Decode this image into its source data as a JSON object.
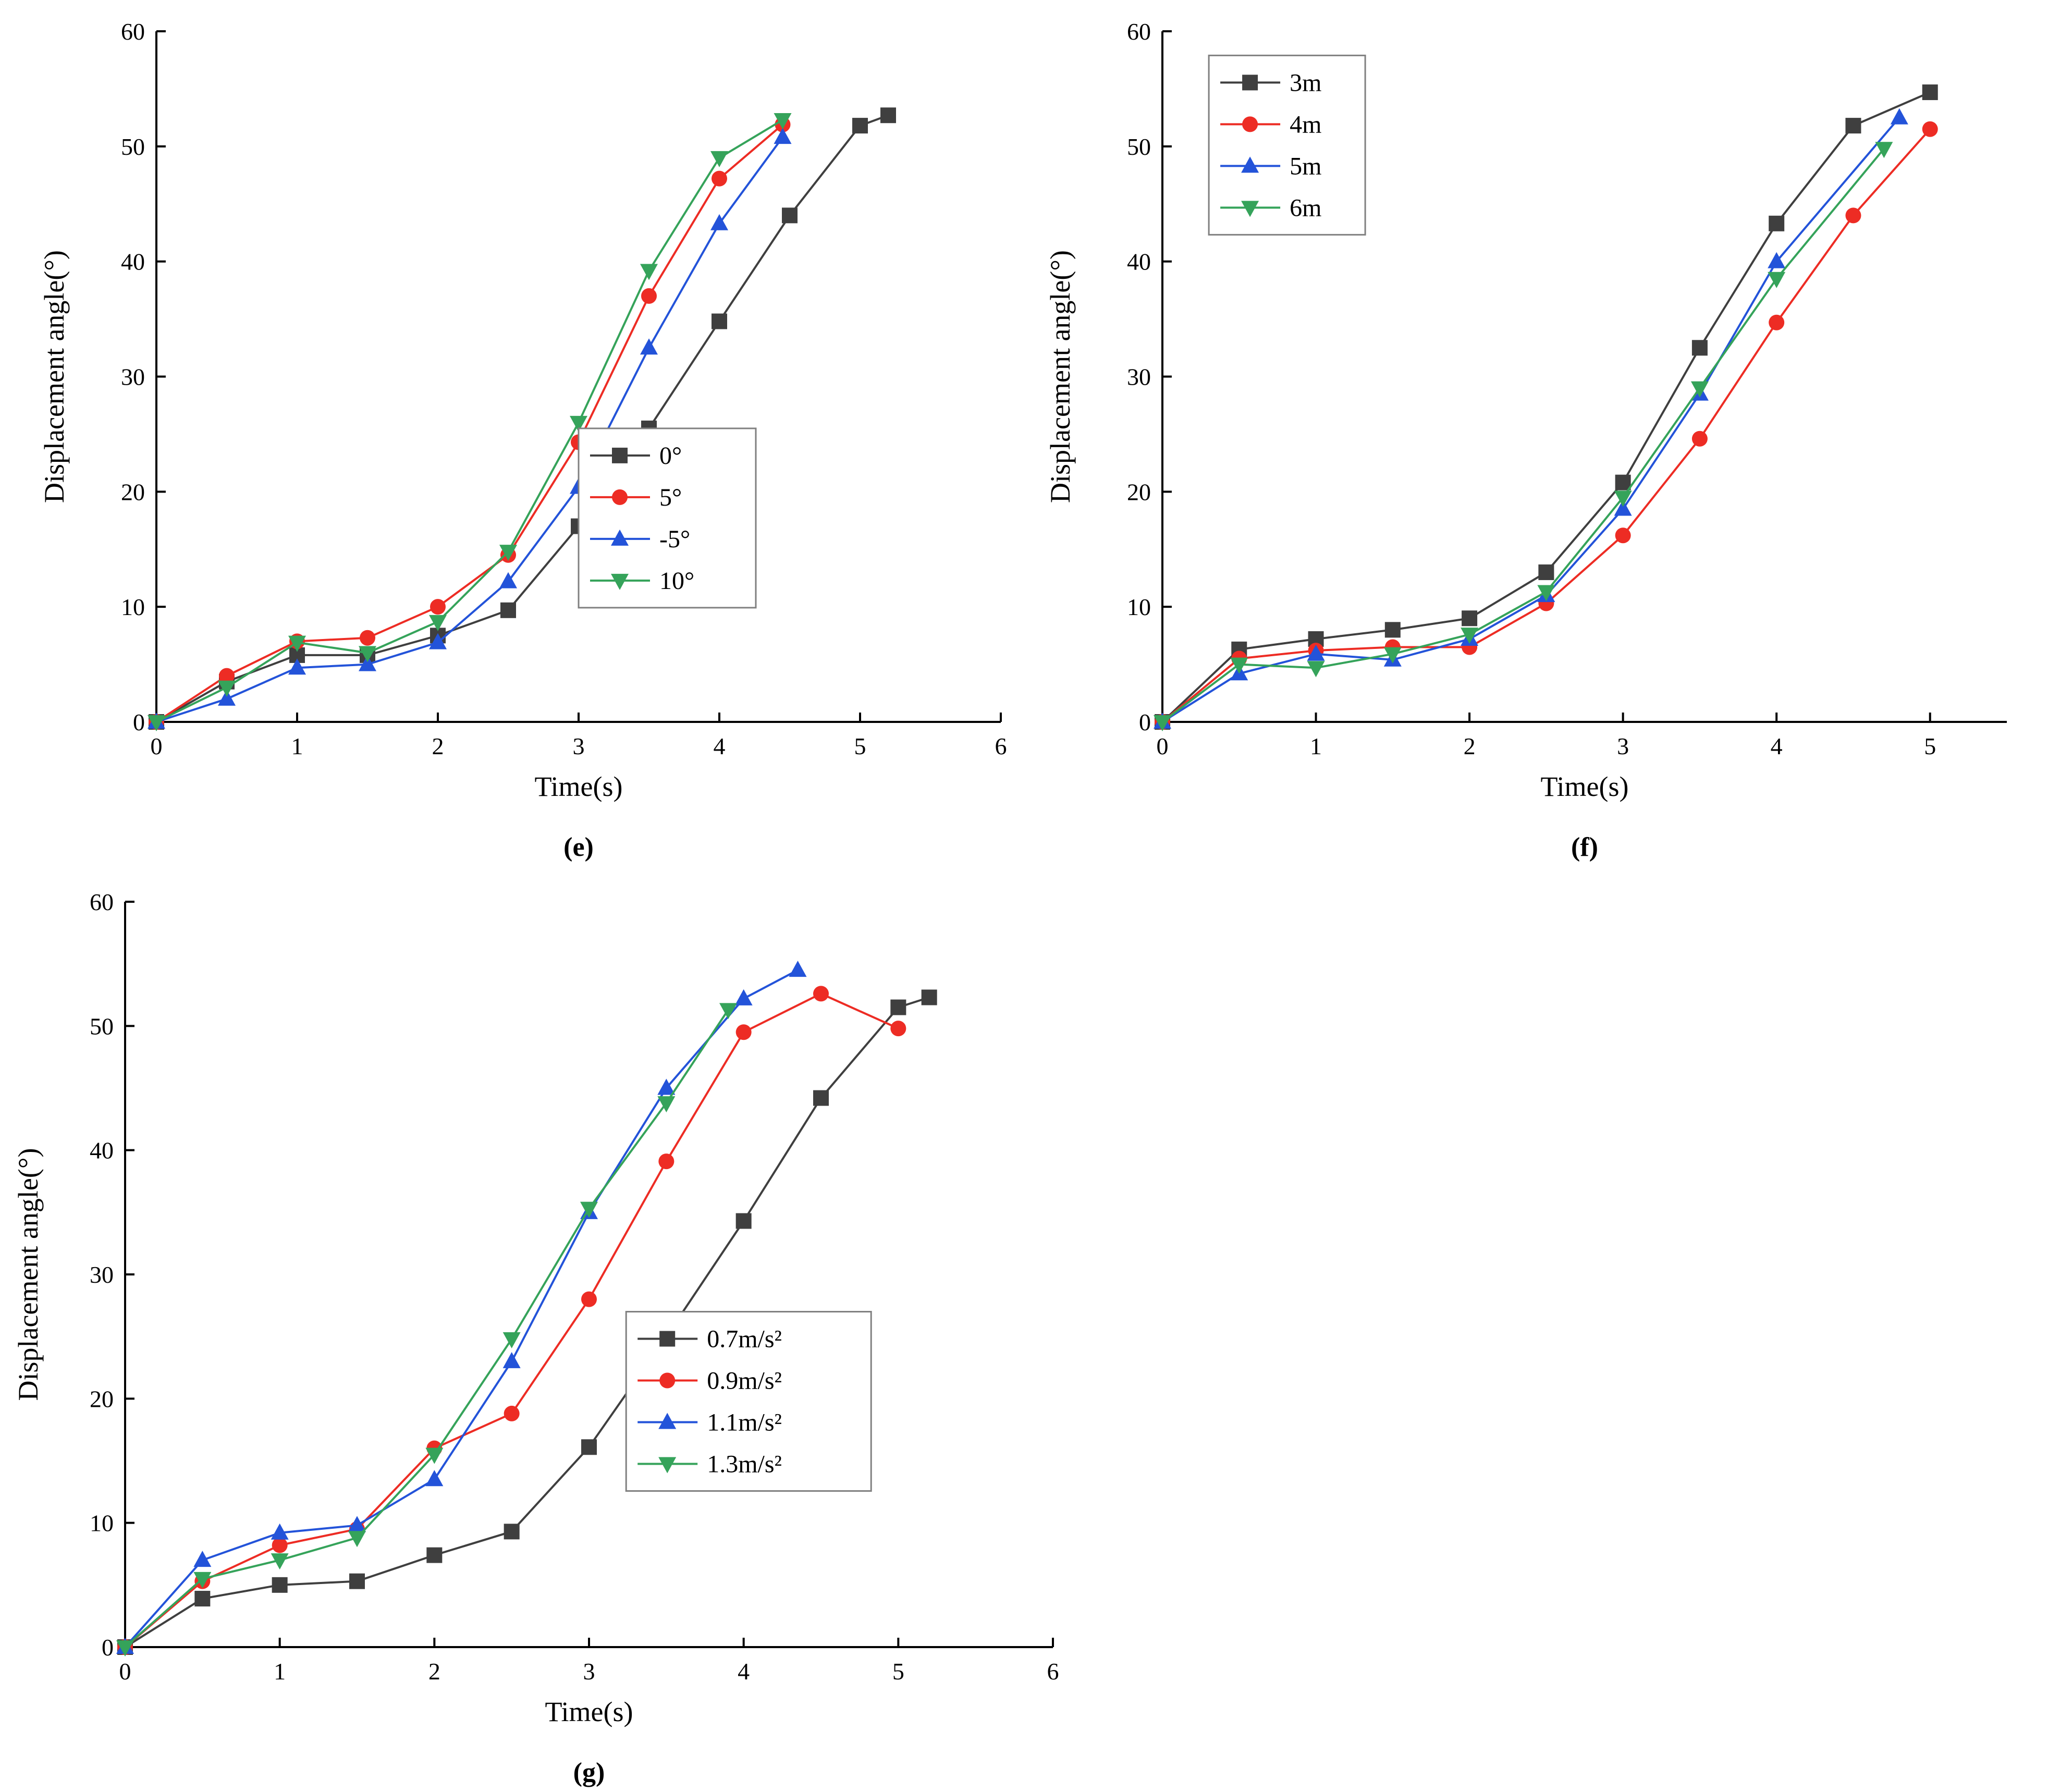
{
  "page": {
    "background": "#ffffff"
  },
  "chart_data": [
    {
      "type": "line",
      "caption": "(e)",
      "title": "",
      "xlabel": "Time(s)",
      "ylabel": "Displacement angle(°)",
      "xlim": [
        0,
        6
      ],
      "ylim": [
        0,
        60
      ],
      "xticks": [
        0,
        1,
        2,
        3,
        4,
        5,
        6
      ],
      "yticks": [
        0,
        10,
        20,
        30,
        40,
        50,
        60
      ],
      "grid": false,
      "legend_position": "inside-center-right",
      "series": [
        {
          "name": "0°",
          "color": "#3f3f3f",
          "marker": "square",
          "x": [
            0,
            0.5,
            1,
            1.5,
            2,
            2.5,
            3,
            3.5,
            4,
            4.5,
            5,
            5.2
          ],
          "y": [
            0,
            3.5,
            5.8,
            5.8,
            7.5,
            9.7,
            17,
            25.5,
            34.8,
            44,
            51.8,
            52.7
          ]
        },
        {
          "name": "5°",
          "color": "#ed2c24",
          "marker": "circle",
          "x": [
            0,
            0.5,
            1,
            1.5,
            2,
            2.5,
            3,
            3.5,
            4,
            4.45
          ],
          "y": [
            0,
            4,
            7,
            7.3,
            10,
            14.5,
            24.3,
            37,
            47.2,
            51.9
          ]
        },
        {
          "name": "-5°",
          "color": "#2353d9",
          "marker": "triangle-up",
          "x": [
            0,
            0.5,
            1,
            1.5,
            2,
            2.5,
            3,
            3.5,
            4,
            4.45
          ],
          "y": [
            0,
            2,
            4.7,
            5,
            6.9,
            12.2,
            20.4,
            32.5,
            43.3,
            50.8
          ]
        },
        {
          "name": "10°",
          "color": "#35a35a",
          "marker": "triangle-down",
          "x": [
            0,
            0.5,
            1,
            1.5,
            2,
            2.5,
            3,
            3.5,
            4,
            4.45
          ],
          "y": [
            0,
            3,
            6.9,
            6,
            8.7,
            14.8,
            26,
            39.2,
            49,
            52.3
          ]
        }
      ]
    },
    {
      "type": "line",
      "caption": "(f)",
      "title": "",
      "xlabel": "Time(s)",
      "ylabel": "Displacement angle(°)",
      "xlim": [
        0,
        5.5
      ],
      "ylim": [
        0,
        60
      ],
      "xticks": [
        0,
        1,
        2,
        3,
        4,
        5
      ],
      "yticks": [
        0,
        10,
        20,
        30,
        40,
        50,
        60
      ],
      "grid": false,
      "legend_position": "inside-top-left",
      "series": [
        {
          "name": "3m",
          "color": "#3f3f3f",
          "marker": "square",
          "x": [
            0,
            0.5,
            1,
            1.5,
            2,
            2.5,
            3,
            3.5,
            4,
            4.5,
            5
          ],
          "y": [
            0,
            6.3,
            7.2,
            8,
            9,
            13,
            20.8,
            32.5,
            43.3,
            51.8,
            54.7
          ]
        },
        {
          "name": "4m",
          "color": "#ed2c24",
          "marker": "circle",
          "x": [
            0,
            0.5,
            1,
            1.5,
            2,
            2.5,
            3,
            3.5,
            4,
            4.5,
            5
          ],
          "y": [
            0,
            5.5,
            6.2,
            6.5,
            6.5,
            10.3,
            16.2,
            24.6,
            34.7,
            44,
            51.5
          ]
        },
        {
          "name": "5m",
          "color": "#2353d9",
          "marker": "triangle-up",
          "x": [
            0,
            0.5,
            1,
            1.5,
            2,
            2.5,
            3,
            3.5,
            4,
            4.8
          ],
          "y": [
            0,
            4.2,
            5.9,
            5.4,
            7.2,
            11,
            18.5,
            28.5,
            40,
            52.5
          ]
        },
        {
          "name": "6m",
          "color": "#35a35a",
          "marker": "triangle-down",
          "x": [
            0,
            0.5,
            1,
            1.5,
            2,
            2.5,
            3,
            3.5,
            4,
            4.7
          ],
          "y": [
            0,
            5,
            4.7,
            5.9,
            7.6,
            11.3,
            19.5,
            29,
            38.5,
            49.8
          ]
        }
      ]
    },
    {
      "type": "line",
      "caption": "(g)",
      "title": "",
      "xlabel": "Time(s)",
      "ylabel": "Displacement angle(°)",
      "xlim": [
        0,
        6
      ],
      "ylim": [
        0,
        60
      ],
      "xticks": [
        0,
        1,
        2,
        3,
        4,
        5,
        6
      ],
      "yticks": [
        0,
        10,
        20,
        30,
        40,
        50,
        60
      ],
      "grid": false,
      "legend_position": "inside-center-right",
      "series": [
        {
          "name": "0.7m/s²",
          "color": "#3f3f3f",
          "marker": "square",
          "x": [
            0,
            0.5,
            1,
            1.5,
            2,
            2.5,
            3,
            3.5,
            4,
            4.5,
            5,
            5.2
          ],
          "y": [
            0,
            3.9,
            5,
            5.3,
            7.4,
            9.3,
            16.1,
            25,
            34.3,
            44.2,
            51.5,
            52.3
          ]
        },
        {
          "name": "0.9m/s²",
          "color": "#ed2c24",
          "marker": "circle",
          "x": [
            0,
            0.5,
            1,
            1.5,
            2,
            2.5,
            3,
            3.5,
            4,
            4.5,
            5
          ],
          "y": [
            0,
            5.3,
            8.2,
            9.5,
            16,
            18.8,
            28,
            39.1,
            49.5,
            52.6,
            49.8
          ]
        },
        {
          "name": "1.1m/s²",
          "color": "#2353d9",
          "marker": "triangle-up",
          "x": [
            0,
            0.5,
            1,
            1.5,
            2,
            2.5,
            3,
            3.5,
            4,
            4.35
          ],
          "y": [
            0,
            7,
            9.2,
            9.8,
            13.5,
            23,
            35,
            45,
            52.2,
            54.5
          ]
        },
        {
          "name": "1.3m/s²",
          "color": "#35a35a",
          "marker": "triangle-down",
          "x": [
            0,
            0.5,
            1,
            1.5,
            2,
            2.5,
            3,
            3.5,
            3.9
          ],
          "y": [
            0,
            5.5,
            7,
            8.8,
            15.5,
            24.8,
            35.3,
            43.8,
            51.3
          ]
        }
      ]
    }
  ]
}
